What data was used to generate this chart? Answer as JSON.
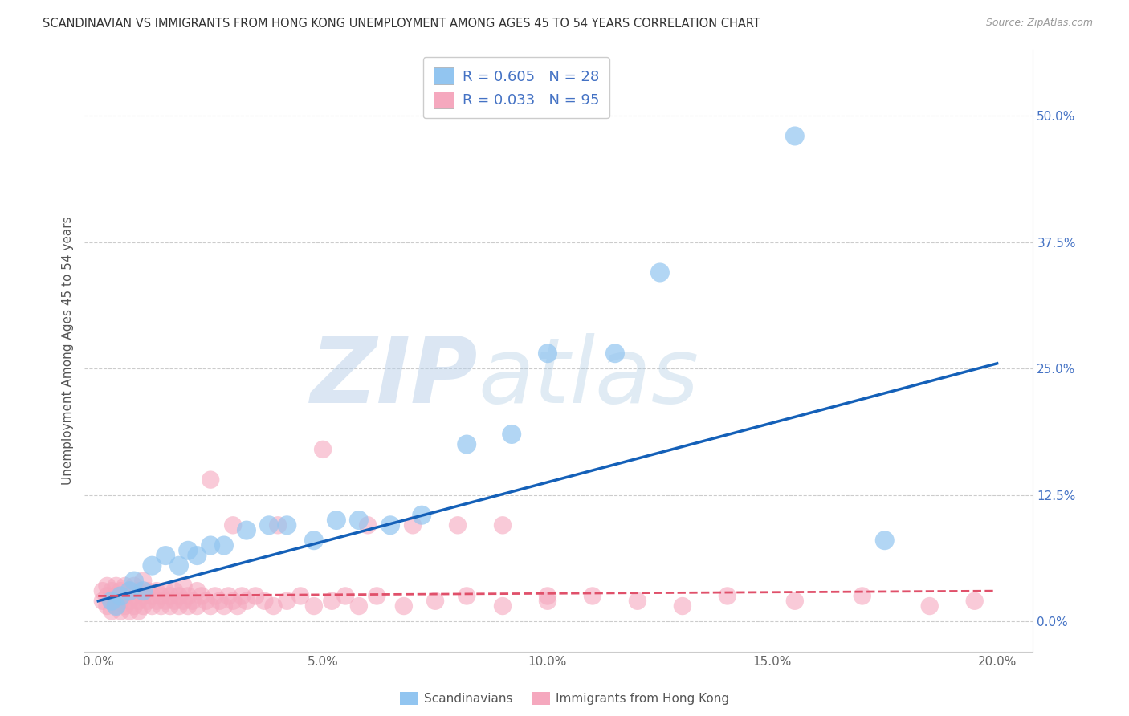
{
  "title": "SCANDINAVIAN VS IMMIGRANTS FROM HONG KONG UNEMPLOYMENT AMONG AGES 45 TO 54 YEARS CORRELATION CHART",
  "source": "Source: ZipAtlas.com",
  "ylabel": "Unemployment Among Ages 45 to 54 years",
  "legend_label1": "Scandinavians",
  "legend_label2": "Immigrants from Hong Kong",
  "R1": 0.605,
  "N1": 28,
  "R2": 0.033,
  "N2": 95,
  "color_blue": "#92C5F0",
  "color_pink": "#F5A8BE",
  "color_blue_line": "#1460B8",
  "color_pink_line": "#E0506A",
  "ytick_labels": [
    "0.0%",
    "12.5%",
    "25.0%",
    "37.5%",
    "50.0%"
  ],
  "ytick_values": [
    0.0,
    0.125,
    0.25,
    0.375,
    0.5
  ],
  "xtick_values": [
    0.0,
    0.05,
    0.1,
    0.15,
    0.2
  ],
  "xlim": [
    -0.003,
    0.208
  ],
  "ylim": [
    -0.03,
    0.565
  ],
  "blue_trendline_x0": 0.0,
  "blue_trendline_y0": 0.02,
  "blue_trendline_x1": 0.2,
  "blue_trendline_y1": 0.255,
  "pink_trendline_x0": 0.0,
  "pink_trendline_y0": 0.025,
  "pink_trendline_x1": 0.2,
  "pink_trendline_y1": 0.03,
  "scandinavian_x": [
    0.003,
    0.004,
    0.005,
    0.007,
    0.008,
    0.01,
    0.012,
    0.015,
    0.018,
    0.02,
    0.022,
    0.025,
    0.028,
    0.033,
    0.038,
    0.042,
    0.048,
    0.053,
    0.058,
    0.065,
    0.072,
    0.082,
    0.092,
    0.1,
    0.115,
    0.125,
    0.155,
    0.175
  ],
  "scandinavian_y": [
    0.02,
    0.015,
    0.025,
    0.03,
    0.04,
    0.03,
    0.055,
    0.065,
    0.055,
    0.07,
    0.065,
    0.075,
    0.075,
    0.09,
    0.095,
    0.095,
    0.08,
    0.1,
    0.1,
    0.095,
    0.105,
    0.175,
    0.185,
    0.265,
    0.265,
    0.345,
    0.48,
    0.08
  ],
  "hk_x": [
    0.001,
    0.001,
    0.002,
    0.002,
    0.002,
    0.003,
    0.003,
    0.003,
    0.004,
    0.004,
    0.004,
    0.005,
    0.005,
    0.005,
    0.006,
    0.006,
    0.006,
    0.007,
    0.007,
    0.007,
    0.008,
    0.008,
    0.008,
    0.009,
    0.009,
    0.009,
    0.01,
    0.01,
    0.01,
    0.011,
    0.011,
    0.012,
    0.012,
    0.013,
    0.013,
    0.014,
    0.014,
    0.015,
    0.015,
    0.016,
    0.016,
    0.017,
    0.017,
    0.018,
    0.018,
    0.019,
    0.019,
    0.02,
    0.02,
    0.021,
    0.022,
    0.022,
    0.023,
    0.024,
    0.025,
    0.025,
    0.026,
    0.027,
    0.028,
    0.029,
    0.03,
    0.031,
    0.032,
    0.033,
    0.035,
    0.037,
    0.039,
    0.042,
    0.045,
    0.048,
    0.052,
    0.055,
    0.058,
    0.062,
    0.068,
    0.075,
    0.082,
    0.09,
    0.1,
    0.11,
    0.12,
    0.13,
    0.14,
    0.155,
    0.17,
    0.185,
    0.195,
    0.03,
    0.04,
    0.05,
    0.06,
    0.07,
    0.08,
    0.09,
    0.1
  ],
  "hk_y": [
    0.02,
    0.03,
    0.015,
    0.025,
    0.035,
    0.01,
    0.02,
    0.03,
    0.015,
    0.025,
    0.035,
    0.01,
    0.02,
    0.03,
    0.015,
    0.025,
    0.035,
    0.01,
    0.02,
    0.03,
    0.015,
    0.025,
    0.035,
    0.01,
    0.02,
    0.03,
    0.015,
    0.025,
    0.04,
    0.02,
    0.03,
    0.015,
    0.025,
    0.02,
    0.03,
    0.015,
    0.025,
    0.02,
    0.03,
    0.015,
    0.025,
    0.02,
    0.03,
    0.015,
    0.025,
    0.02,
    0.035,
    0.015,
    0.025,
    0.02,
    0.015,
    0.03,
    0.025,
    0.02,
    0.015,
    0.14,
    0.025,
    0.02,
    0.015,
    0.025,
    0.02,
    0.015,
    0.025,
    0.02,
    0.025,
    0.02,
    0.015,
    0.02,
    0.025,
    0.015,
    0.02,
    0.025,
    0.015,
    0.025,
    0.015,
    0.02,
    0.025,
    0.015,
    0.02,
    0.025,
    0.02,
    0.015,
    0.025,
    0.02,
    0.025,
    0.015,
    0.02,
    0.095,
    0.095,
    0.17,
    0.095,
    0.095,
    0.095,
    0.095,
    0.025
  ]
}
